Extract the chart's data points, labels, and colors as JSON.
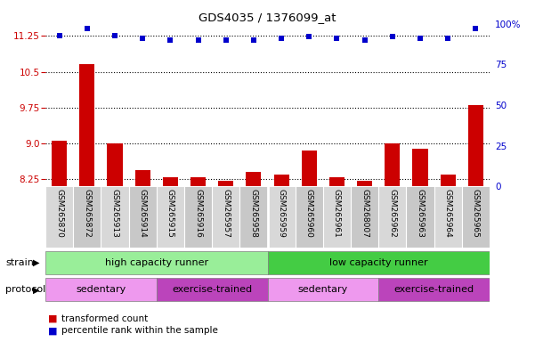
{
  "title": "GDS4035 / 1376099_at",
  "samples": [
    "GSM265870",
    "GSM265872",
    "GSM265913",
    "GSM265914",
    "GSM265915",
    "GSM265916",
    "GSM265957",
    "GSM265958",
    "GSM265959",
    "GSM265960",
    "GSM265961",
    "GSM268007",
    "GSM265962",
    "GSM265963",
    "GSM265964",
    "GSM265965"
  ],
  "transformed_count": [
    9.05,
    10.65,
    9.0,
    8.45,
    8.3,
    8.3,
    8.22,
    8.4,
    8.35,
    8.85,
    8.3,
    8.22,
    9.0,
    8.88,
    8.35,
    9.8
  ],
  "percentile_rank": [
    93,
    97,
    93,
    91,
    90,
    90,
    90,
    90,
    91,
    92,
    91,
    90,
    92,
    91,
    91,
    97
  ],
  "ylim_left": [
    8.1,
    11.5
  ],
  "ylim_right": [
    0,
    100
  ],
  "yticks_left": [
    8.25,
    9.0,
    9.75,
    10.5,
    11.25
  ],
  "yticks_right": [
    0,
    25,
    50,
    75,
    100
  ],
  "strain_groups": [
    {
      "label": "high capacity runner",
      "start": 0,
      "end": 8,
      "color": "#99ee99"
    },
    {
      "label": "low capacity runner",
      "start": 8,
      "end": 16,
      "color": "#44cc44"
    }
  ],
  "protocol_groups": [
    {
      "label": "sedentary",
      "start": 0,
      "end": 4,
      "color": "#ee99ee"
    },
    {
      "label": "exercise-trained",
      "start": 4,
      "end": 8,
      "color": "#bb44bb"
    },
    {
      "label": "sedentary",
      "start": 8,
      "end": 12,
      "color": "#ee99ee"
    },
    {
      "label": "exercise-trained",
      "start": 12,
      "end": 16,
      "color": "#bb44bb"
    }
  ],
  "bar_color": "#cc0000",
  "dot_color": "#0000cc",
  "bar_bottom": 8.1,
  "axis_bg": "#ffffff",
  "legend_red_label": "transformed count",
  "legend_blue_label": "percentile rank within the sample",
  "strain_label": "strain",
  "protocol_label": "protocol"
}
